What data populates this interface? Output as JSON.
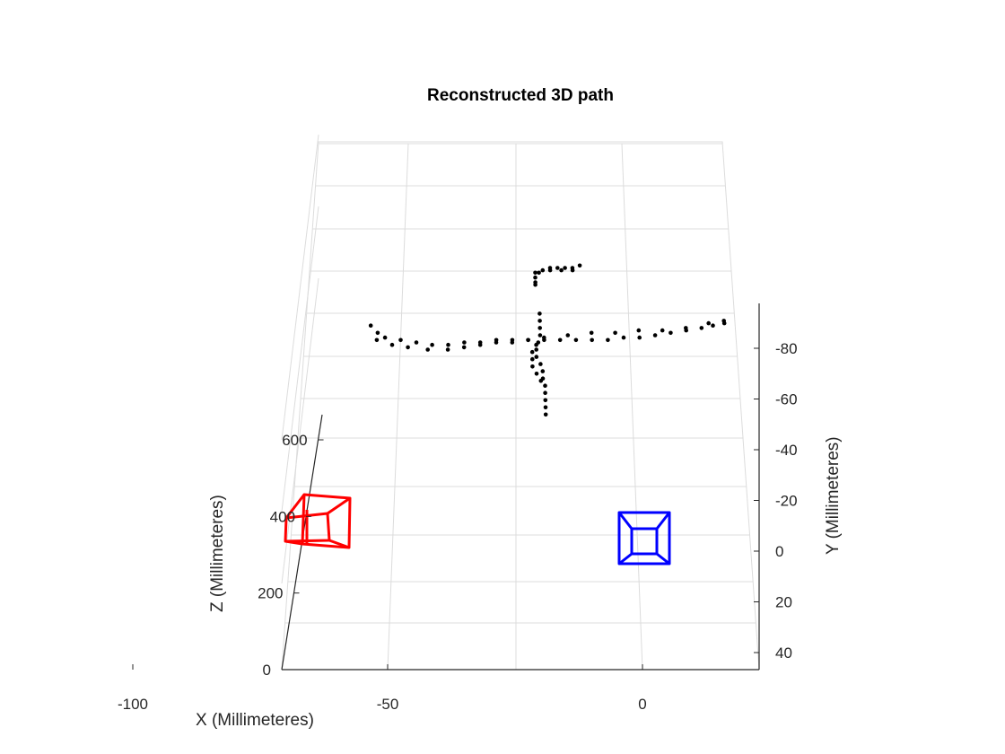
{
  "chart_data": {
    "type": "scatter",
    "title": "Reconstructed 3D path",
    "xlabel": "X (Millimeteres)",
    "ylabel": "Y (Millimeteres)",
    "zlabel": "Z (Millimeteres)",
    "grid": true,
    "xlim": [
      -140,
      45
    ],
    "ylim": [
      -95,
      48
    ],
    "zlim": [
      0,
      700
    ],
    "x_ticks": [
      {
        "value": -100,
        "label": "-100"
      },
      {
        "value": -50,
        "label": "-50"
      },
      {
        "value": 0,
        "label": "0"
      }
    ],
    "y_ticks": [
      {
        "value": -80,
        "label": "-80"
      },
      {
        "value": -60,
        "label": "-60"
      },
      {
        "value": -40,
        "label": "-40"
      },
      {
        "value": -20,
        "label": "-20"
      },
      {
        "value": 0,
        "label": "0"
      },
      {
        "value": 20,
        "label": "20"
      },
      {
        "value": 40,
        "label": "40"
      }
    ],
    "z_ticks": [
      {
        "value": 0,
        "label": "0"
      },
      {
        "value": 200,
        "label": "200"
      },
      {
        "value": 400,
        "label": "400"
      },
      {
        "value": 600,
        "label": "600"
      }
    ],
    "series": [
      {
        "color": "#000000",
        "marker": "dot",
        "points": [
          [
            -62,
            -88
          ],
          [
            -60,
            -85
          ],
          [
            -58,
            -83
          ],
          [
            -54,
            -82
          ],
          [
            -50,
            -81
          ],
          [
            -46,
            -80
          ],
          [
            -42,
            -80
          ],
          [
            -38,
            -81
          ],
          [
            -34,
            -81
          ],
          [
            -30,
            -82
          ],
          [
            -26,
            -82
          ],
          [
            -22,
            -82
          ],
          [
            -18,
            -82
          ],
          [
            -14,
            -82
          ],
          [
            -10,
            -82
          ],
          [
            -6,
            -82
          ],
          [
            -2,
            -82
          ],
          [
            2,
            -83
          ],
          [
            6,
            -83
          ],
          [
            10,
            -84
          ],
          [
            14,
            -85
          ],
          [
            18,
            -86
          ],
          [
            22,
            -87
          ],
          [
            25,
            -88
          ],
          [
            28,
            -89
          ],
          [
            -60,
            -82
          ],
          [
            -56,
            -80
          ],
          [
            -52,
            -79
          ],
          [
            -47,
            -78
          ],
          [
            -42,
            -78
          ],
          [
            -38,
            -79
          ],
          [
            -34,
            -80
          ],
          [
            -30,
            -81
          ],
          [
            -26,
            -81
          ],
          [
            -22,
            -82
          ],
          [
            -18,
            -83
          ],
          [
            -12,
            -84
          ],
          [
            -6,
            -85
          ],
          [
            0,
            -85
          ],
          [
            6,
            -86
          ],
          [
            12,
            -86
          ],
          [
            18,
            -87
          ],
          [
            24,
            -89
          ],
          [
            28,
            -90
          ],
          [
            -19,
            -93
          ],
          [
            -19,
            -90
          ],
          [
            -19,
            -87
          ],
          [
            -19,
            -84
          ],
          [
            -19.5,
            -81
          ],
          [
            -20,
            -78
          ],
          [
            -20,
            -75
          ],
          [
            -19,
            -72
          ],
          [
            -18.5,
            -69
          ],
          [
            -18.5,
            -66
          ],
          [
            -18,
            -63
          ],
          [
            -18,
            -60
          ],
          [
            -18,
            -57
          ],
          [
            -18,
            -54
          ],
          [
            -18,
            -51
          ],
          [
            -20,
            -80
          ],
          [
            -21,
            -77
          ],
          [
            -21,
            -74
          ],
          [
            -21,
            -71
          ],
          [
            -20,
            -68
          ],
          [
            -19,
            -65
          ]
        ]
      },
      {
        "color": "#000000",
        "marker": "dot",
        "points": [
          [
            -20,
            -110
          ],
          [
            -18,
            -111
          ],
          [
            -16,
            -112
          ],
          [
            -14,
            -112
          ],
          [
            -12,
            -112
          ],
          [
            -10,
            -112
          ],
          [
            -8,
            -113
          ],
          [
            -10,
            -111
          ],
          [
            -13,
            -111
          ],
          [
            -16,
            -111
          ],
          [
            -19,
            -110
          ],
          [
            -20,
            -108
          ],
          [
            -20,
            -106
          ],
          [
            -20,
            -105
          ]
        ]
      }
    ],
    "cameras": [
      {
        "color": "#ff0000",
        "x": -130,
        "y": 5,
        "z": 350
      },
      {
        "color": "#0000ff",
        "x": 0,
        "y": 5,
        "z": 0
      }
    ]
  }
}
